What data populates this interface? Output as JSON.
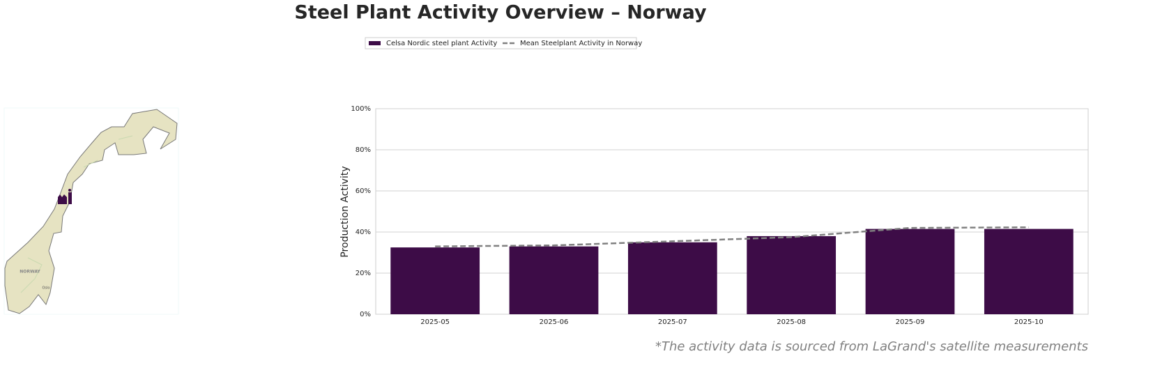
{
  "chart_data": {
    "type": "bar",
    "title": "Steel Plant Activity Overview – Norway",
    "ylabel": "Production Activity",
    "footnote": "*The activity data is sourced from LaGrand's satellite measurements",
    "map_labels": [
      "NORWAY",
      "Oslo"
    ],
    "categories": [
      "2025-05",
      "2025-06",
      "2025-07",
      "2025-08",
      "2025-09",
      "2025-10"
    ],
    "series": [
      {
        "name": "Celsa Nordic steel plant Activity",
        "type": "bar",
        "color": "#3d0c47",
        "values": [
          32.5,
          33,
          35,
          38,
          41.5,
          41.5
        ]
      },
      {
        "name": "Mean Steelplant Activity in Norway",
        "type": "line",
        "dashed": true,
        "color": "#808080",
        "values": [
          33,
          33.5,
          35.5,
          37.5,
          42,
          42.3
        ]
      }
    ],
    "ylim": [
      0,
      100
    ],
    "yticks": [
      {
        "value": 0,
        "label": "0%"
      },
      {
        "value": 20,
        "label": "20%"
      },
      {
        "value": 40,
        "label": "40%"
      },
      {
        "value": 60,
        "label": "60%"
      },
      {
        "value": 80,
        "label": "80%"
      },
      {
        "value": 100,
        "label": "100%"
      }
    ],
    "grid": true
  }
}
